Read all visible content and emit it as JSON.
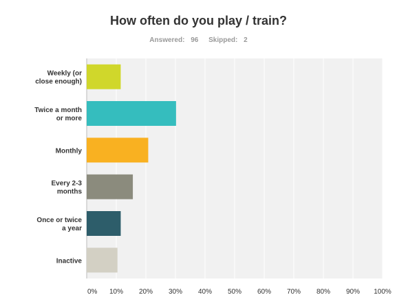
{
  "summary": {
    "answered_label": "Answered:",
    "answered_value": "96",
    "skipped_label": "Skipped:",
    "skipped_value": "2"
  },
  "colors": {
    "plot_background": "#f1f1f1",
    "gridline": "#ffffff",
    "axis": "#bbbbbb"
  },
  "chart_data": {
    "type": "bar",
    "orientation": "horizontal",
    "title": "How often do you play / train?",
    "categories": [
      [
        "Weekly (or",
        "close enough)"
      ],
      [
        "Twice a month",
        "or more"
      ],
      [
        "Monthly"
      ],
      [
        "Every 2-3",
        "months"
      ],
      [
        "Once or twice",
        "a year"
      ],
      [
        "Inactive"
      ]
    ],
    "values": [
      11.5,
      30.2,
      20.8,
      15.6,
      11.5,
      10.4
    ],
    "bar_colors": [
      "#d0d72b",
      "#35bdbe",
      "#f9b121",
      "#8b8b7d",
      "#2d5d6a",
      "#d3d0c4"
    ],
    "xlim": [
      0,
      100
    ],
    "x_ticks": [
      0,
      10,
      20,
      30,
      40,
      50,
      60,
      70,
      80,
      90,
      100
    ],
    "x_tick_labels": [
      "0%",
      "10%",
      "20%",
      "30%",
      "40%",
      "50%",
      "60%",
      "70%",
      "80%",
      "90%",
      "100%"
    ],
    "grid": true,
    "legend": "none",
    "xlabel": "",
    "ylabel": ""
  }
}
